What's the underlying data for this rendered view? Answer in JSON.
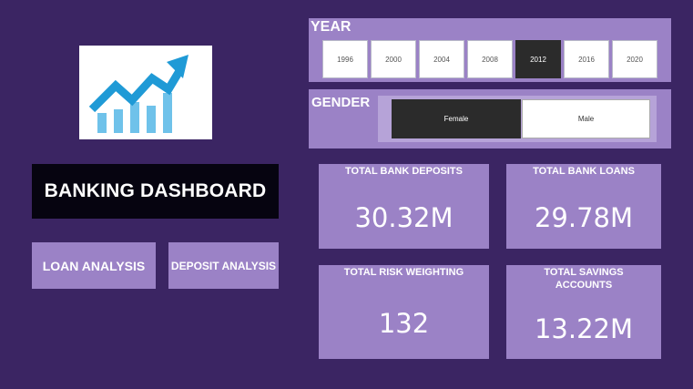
{
  "dashboard": {
    "title": "BANKING DASHBOARD",
    "nav": {
      "loan_label": "LOAN ANALYSIS",
      "deposit_label": "DEPOSIT ANALYSIS"
    }
  },
  "logo": {
    "icon": "growth-chart-icon"
  },
  "year_slicer": {
    "label": "YEAR",
    "options": [
      "1996",
      "2000",
      "2004",
      "2008",
      "2012",
      "2016",
      "2020"
    ],
    "selected": "2012"
  },
  "gender_slicer": {
    "label": "GENDER",
    "options": [
      "Female",
      "Male"
    ],
    "selected": "Female"
  },
  "kpis": {
    "deposits": {
      "label": "TOTAL BANK DEPOSITS",
      "value": "30.32M"
    },
    "loans": {
      "label": "TOTAL BANK LOANS",
      "value": "29.78M"
    },
    "risk": {
      "label": "TOTAL RISK WEIGHTING",
      "value": "132"
    },
    "savings": {
      "label": "TOTAL SAVINGS ACCOUNTS",
      "value": "13.22M"
    }
  },
  "colors": {
    "background": "#3b2563",
    "panel": "#9b82c6",
    "selected": "#2b2b2b",
    "logo_blue": "#1f9ad6"
  }
}
